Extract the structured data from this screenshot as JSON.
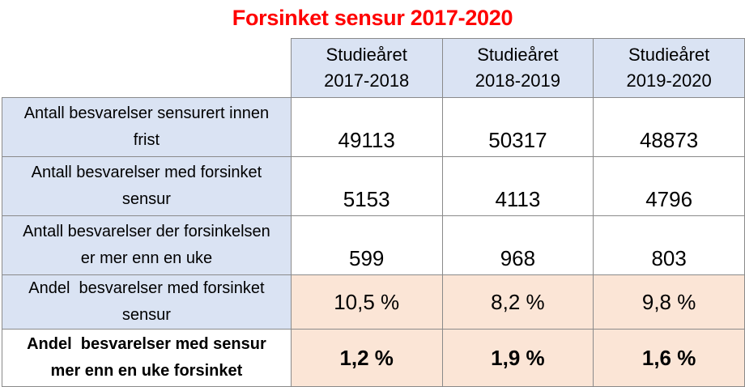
{
  "title": "Forsinket sensur 2017-2020",
  "columns": [
    {
      "line1": "Studieåret",
      "line2": "2017-2018"
    },
    {
      "line1": "Studieåret",
      "line2": "2018-2019"
    },
    {
      "line1": "Studieåret",
      "line2": "2019-2020"
    }
  ],
  "rows": [
    {
      "label_line1": "Antall besvarelser sensurert innen",
      "label_line2": "frist",
      "values": [
        "49113",
        "50317",
        "48873"
      ]
    },
    {
      "label_line1": "Antall besvarelser med forsinket",
      "label_line2": "sensur",
      "values": [
        "5153",
        "4113",
        "4796"
      ]
    },
    {
      "label_line1": "Antall besvarelser der forsinkelsen",
      "label_line2": "er mer enn en uke",
      "values": [
        "599",
        "968",
        "803"
      ]
    },
    {
      "label_line1": "Andel  besvarelser med forsinket",
      "label_line2": "sensur",
      "values": [
        "10,5 %",
        "8,2 %",
        "9,8 %"
      ]
    },
    {
      "label_line1": "Andel  besvarelser med sensur",
      "label_line2": "mer enn en uke forsinket",
      "values": [
        "1,2 %",
        "1,9 %",
        "1,6 %"
      ]
    }
  ],
  "colors": {
    "title": "#ff0000",
    "header_fill": "#dae3f3",
    "highlight_fill": "#fbe5d6",
    "grid": "#8a8a8a"
  }
}
